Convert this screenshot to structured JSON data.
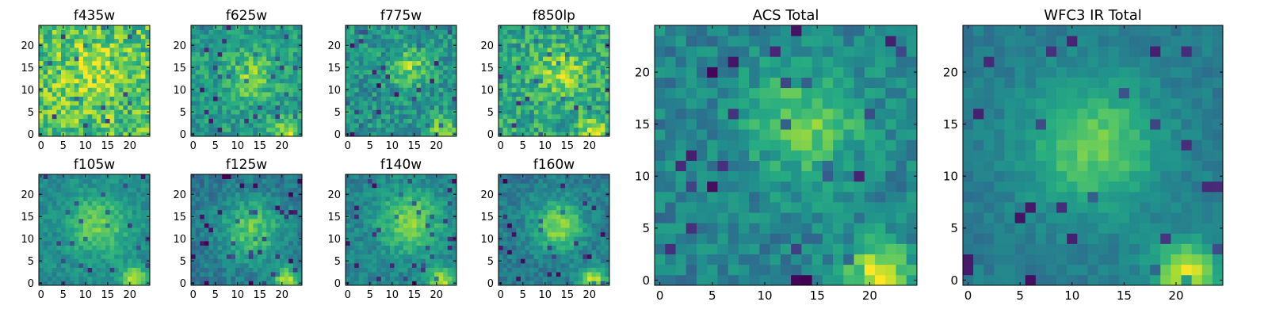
{
  "chart_data": [
    {
      "type": "heatmap",
      "title": "f435w",
      "colormap": "viridis",
      "grid_size": 25,
      "xlim": [
        -0.5,
        24.5
      ],
      "ylim": [
        -0.5,
        24.5
      ],
      "xticks": [
        0,
        5,
        10,
        15,
        20
      ],
      "yticks": [
        0,
        5,
        10,
        15,
        20
      ],
      "grid": false,
      "feature": {
        "type": "noise",
        "cx": 12,
        "cy": 14,
        "sigma": 5,
        "peak": 0.15,
        "base": 0.72,
        "noise": 0.22,
        "seed": 11
      }
    },
    {
      "type": "heatmap",
      "title": "f625w",
      "colormap": "viridis",
      "grid_size": 25,
      "xlim": [
        -0.5,
        24.5
      ],
      "ylim": [
        -0.5,
        24.5
      ],
      "xticks": [
        0,
        5,
        10,
        15,
        20
      ],
      "yticks": [
        0,
        5,
        10,
        15,
        20
      ],
      "grid": false,
      "feature": {
        "type": "blob",
        "cx": 13,
        "cy": 13,
        "sigma": 4,
        "peak": 0.25,
        "base": 0.55,
        "noise": 0.15,
        "seed": 23,
        "corner": 0.35
      }
    },
    {
      "type": "heatmap",
      "title": "f775w",
      "colormap": "viridis",
      "grid_size": 25,
      "xlim": [
        -0.5,
        24.5
      ],
      "ylim": [
        -0.5,
        24.5
      ],
      "xticks": [
        0,
        5,
        10,
        15,
        20
      ],
      "yticks": [
        0,
        5,
        10,
        15,
        20
      ],
      "grid": false,
      "feature": {
        "type": "blob",
        "cx": 14,
        "cy": 15,
        "sigma": 3,
        "peak": 0.3,
        "base": 0.52,
        "noise": 0.16,
        "seed": 37,
        "corner": 0.4
      }
    },
    {
      "type": "heatmap",
      "title": "f850lp",
      "colormap": "viridis",
      "grid_size": 25,
      "xlim": [
        -0.5,
        24.5
      ],
      "ylim": [
        -0.5,
        24.5
      ],
      "xticks": [
        0,
        5,
        10,
        15,
        20
      ],
      "yticks": [
        0,
        5,
        10,
        15,
        20
      ],
      "grid": false,
      "feature": {
        "type": "blob",
        "cx": 14,
        "cy": 14,
        "sigma": 4,
        "peak": 0.25,
        "base": 0.6,
        "noise": 0.18,
        "seed": 41,
        "corner": 0.35
      }
    },
    {
      "type": "heatmap",
      "title": "f105w",
      "colormap": "viridis",
      "grid_size": 25,
      "xlim": [
        -0.5,
        24.5
      ],
      "ylim": [
        -0.5,
        24.5
      ],
      "xticks": [
        0,
        5,
        10,
        15,
        20
      ],
      "yticks": [
        0,
        5,
        10,
        15,
        20
      ],
      "grid": false,
      "feature": {
        "type": "blob",
        "cx": 13,
        "cy": 13,
        "sigma": 5,
        "peak": 0.3,
        "base": 0.48,
        "noise": 0.09,
        "seed": 53,
        "corner": 0.45
      }
    },
    {
      "type": "heatmap",
      "title": "f125w",
      "colormap": "viridis",
      "grid_size": 25,
      "xlim": [
        -0.5,
        24.5
      ],
      "ylim": [
        -0.5,
        24.5
      ],
      "xticks": [
        0,
        5,
        10,
        15,
        20
      ],
      "yticks": [
        0,
        5,
        10,
        15,
        20
      ],
      "grid": false,
      "feature": {
        "type": "blob",
        "cx": 13,
        "cy": 12,
        "sigma": 5,
        "peak": 0.35,
        "base": 0.4,
        "noise": 0.1,
        "seed": 67,
        "corner": 0.5
      }
    },
    {
      "type": "heatmap",
      "title": "f140w",
      "colormap": "viridis",
      "grid_size": 25,
      "xlim": [
        -0.5,
        24.5
      ],
      "ylim": [
        -0.5,
        24.5
      ],
      "xticks": [
        0,
        5,
        10,
        15,
        20
      ],
      "yticks": [
        0,
        5,
        10,
        15,
        20
      ],
      "grid": false,
      "feature": {
        "type": "blob",
        "cx": 14,
        "cy": 14,
        "sigma": 5,
        "peak": 0.35,
        "base": 0.45,
        "noise": 0.1,
        "seed": 71,
        "corner": 0.45
      }
    },
    {
      "type": "heatmap",
      "title": "f160w",
      "colormap": "viridis",
      "grid_size": 25,
      "xlim": [
        -0.5,
        24.5
      ],
      "ylim": [
        -0.5,
        24.5
      ],
      "xticks": [
        0,
        5,
        10,
        15,
        20
      ],
      "yticks": [
        0,
        5,
        10,
        15,
        20
      ],
      "grid": false,
      "feature": {
        "type": "blob",
        "cx": 13,
        "cy": 13,
        "sigma": 4,
        "peak": 0.4,
        "base": 0.42,
        "noise": 0.1,
        "seed": 83,
        "corner": 0.5
      }
    },
    {
      "type": "heatmap",
      "title": "ACS Total",
      "colormap": "viridis",
      "grid_size": 25,
      "xlim": [
        -0.5,
        24.5
      ],
      "ylim": [
        -0.5,
        24.5
      ],
      "xticks": [
        0,
        5,
        10,
        15,
        20
      ],
      "yticks": [
        0,
        5,
        10,
        15,
        20
      ],
      "grid": false,
      "feature": {
        "type": "blob",
        "cx": 14,
        "cy": 15,
        "sigma": 4,
        "peak": 0.3,
        "base": 0.45,
        "noise": 0.12,
        "seed": 97,
        "corner": 0.5
      }
    },
    {
      "type": "heatmap",
      "title": "WFC3 IR Total",
      "colormap": "viridis",
      "grid_size": 25,
      "xlim": [
        -0.5,
        24.5
      ],
      "ylim": [
        -0.5,
        24.5
      ],
      "xticks": [
        0,
        5,
        10,
        15,
        20
      ],
      "yticks": [
        0,
        5,
        10,
        15,
        20
      ],
      "grid": false,
      "feature": {
        "type": "blob",
        "cx": 12,
        "cy": 13,
        "sigma": 4.5,
        "peak": 0.35,
        "base": 0.42,
        "noise": 0.06,
        "seed": 101,
        "corner": 0.55
      }
    }
  ]
}
